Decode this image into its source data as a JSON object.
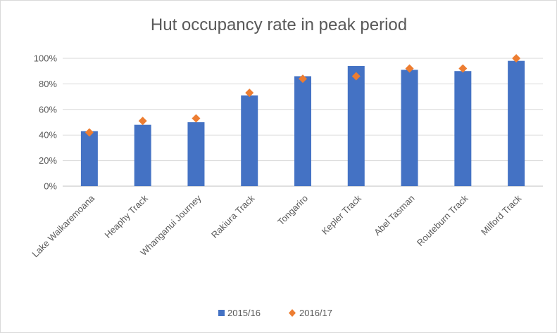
{
  "chart_data": {
    "type": "bar",
    "title": "Hut occupancy rate in peak period",
    "xlabel": "",
    "ylabel": "",
    "categories": [
      "Lake Waikaremoana",
      "Heaphy Track",
      "Whanganui Journey",
      "Rakiura Track",
      "Tongariro",
      "Kepler Track",
      "Abel Tasman",
      "Routeburn Track",
      "Milford Track"
    ],
    "series": [
      {
        "name": "2015/16",
        "kind": "bar",
        "color": "#4472c4",
        "values": [
          43,
          48,
          50,
          71,
          86,
          94,
          91,
          90,
          98
        ]
      },
      {
        "name": "2016/17",
        "kind": "marker",
        "marker": "diamond",
        "color": "#ed7d31",
        "values": [
          42,
          51,
          53,
          73,
          84,
          86,
          92,
          92,
          100
        ]
      }
    ],
    "ylim": [
      0,
      100
    ],
    "yticks": [
      0,
      20,
      40,
      60,
      80,
      100
    ],
    "ytick_labels": [
      "0%",
      "20%",
      "40%",
      "60%",
      "80%",
      "100%"
    ],
    "grid": true,
    "legend_position": "bottom"
  }
}
